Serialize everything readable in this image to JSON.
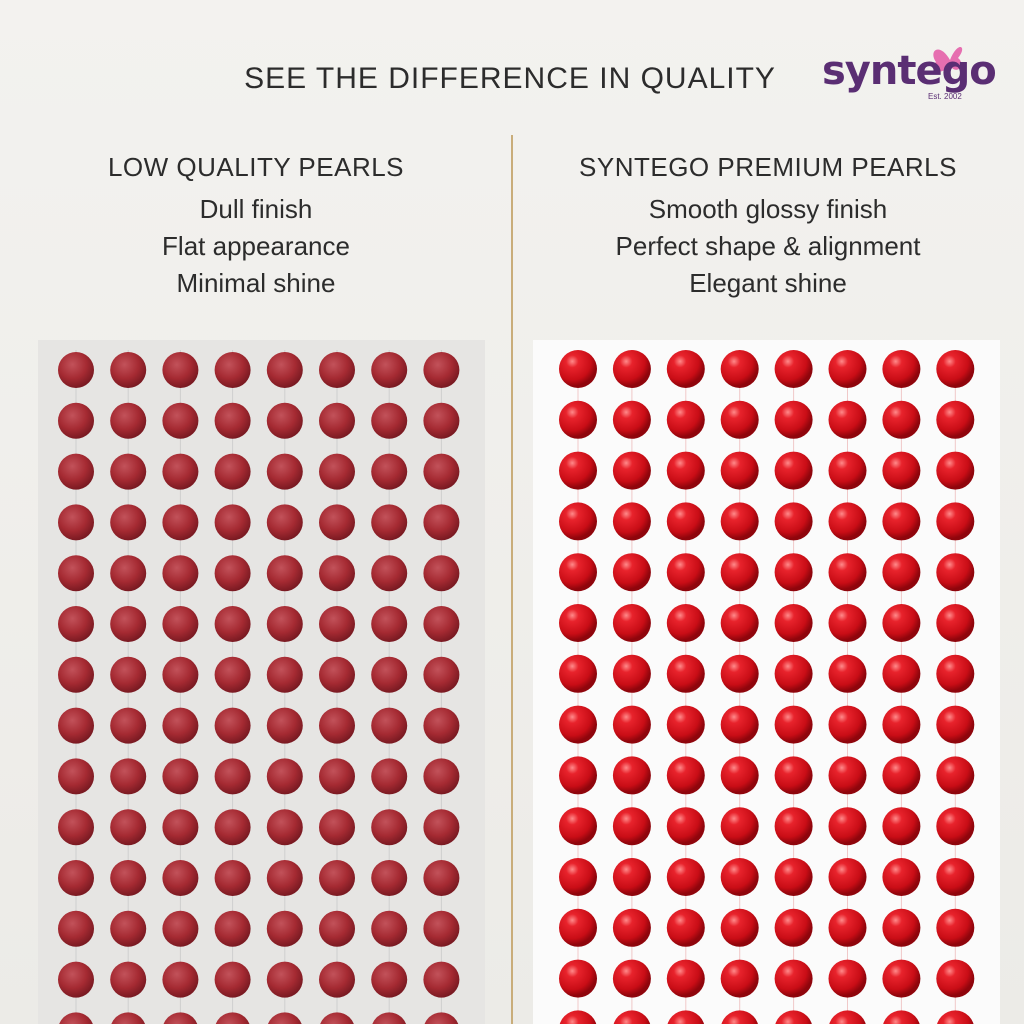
{
  "header": {
    "title": "SEE THE DIFFERENCE IN QUALITY",
    "brand": "syntego",
    "brand_tagline": "Est. 2002"
  },
  "columns": [
    {
      "heading": "LOW QUALITY PEARLS",
      "features": [
        "Dull finish",
        "Flat appearance",
        "Minimal shine"
      ]
    },
    {
      "heading": "SYNTEGO PREMIUM PEARLS",
      "features": [
        "Smooth glossy finish",
        "Perfect shape & alignment",
        "Elegant shine"
      ]
    }
  ]
}
